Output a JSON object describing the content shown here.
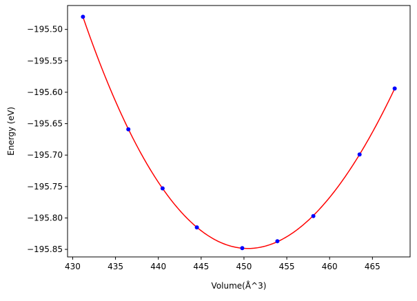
{
  "chart_data": {
    "type": "scatter",
    "title": "",
    "xlabel": "Volume(Å^3)",
    "ylabel": "Energy (eV)",
    "xlim": [
      429.4,
      469.4
    ],
    "ylim": [
      -195.862,
      -195.462
    ],
    "grid": false,
    "legend": "none",
    "x_ticks": [
      430,
      435,
      440,
      445,
      450,
      455,
      460,
      465
    ],
    "x_tick_labels": [
      "430",
      "435",
      "440",
      "445",
      "450",
      "455",
      "460",
      "465"
    ],
    "y_ticks": [
      -195.5,
      -195.55,
      -195.6,
      -195.65,
      -195.7,
      -195.75,
      -195.8,
      -195.85
    ],
    "y_tick_labels": [
      "−195.50",
      "−195.55",
      "−195.60",
      "−195.65",
      "−195.70",
      "−195.75",
      "−195.80",
      "−195.85"
    ],
    "series": [
      {
        "kind": "points",
        "color": "#0000ff",
        "marker": "circle",
        "x": [
          431.2,
          436.5,
          440.5,
          444.5,
          449.8,
          453.9,
          458.1,
          463.5,
          467.6
        ],
        "y": [
          -195.48,
          -195.659,
          -195.753,
          -195.815,
          -195.848,
          -195.837,
          -195.797,
          -195.699,
          -195.594
        ]
      },
      {
        "kind": "fit-curve",
        "color": "#ff0000",
        "x": [
          431.2,
          436.5,
          440.5,
          444.5,
          449.8,
          453.9,
          458.1,
          463.5,
          467.6
        ],
        "y": [
          -195.48,
          -195.659,
          -195.753,
          -195.815,
          -195.848,
          -195.837,
          -195.797,
          -195.699,
          -195.594
        ]
      }
    ]
  }
}
